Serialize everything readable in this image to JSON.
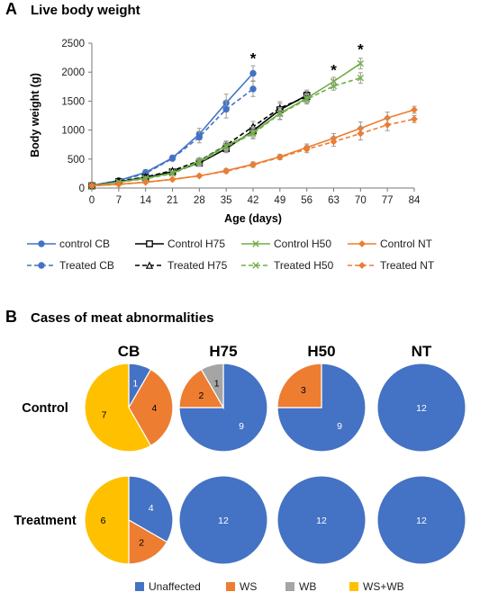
{
  "panel_a": {
    "letter": "A",
    "title": "Live body weight"
  },
  "panel_b": {
    "letter": "B",
    "title": "Cases of meat abnormalities"
  },
  "colors": {
    "CB": "#4472C4",
    "H75": "#000000",
    "H50": "#70AD47",
    "NT": "#ED7D31",
    "Unaffected": "#4472C4",
    "WS": "#ED7D31",
    "WB": "#A5A5A5",
    "WS+WB": "#FFC000"
  },
  "chart_data": [
    {
      "type": "line",
      "title": "Live body weight",
      "xlabel": "Age (days)",
      "ylabel": "Body weight (g)",
      "xlim": [
        0,
        84
      ],
      "ylim": [
        0,
        2500
      ],
      "x_ticks": [
        0,
        7,
        14,
        21,
        28,
        35,
        42,
        49,
        56,
        63,
        70,
        77,
        84
      ],
      "y_ticks": [
        0,
        500,
        1000,
        1500,
        2000,
        2500
      ],
      "grid": false,
      "legend_position": "bottom",
      "series": [
        {
          "name": "control CB",
          "group": "CB",
          "dashed": false,
          "marker": "circle",
          "x": [
            0,
            7,
            14,
            21,
            28,
            35,
            42
          ],
          "y": [
            45,
            130,
            270,
            520,
            930,
            1470,
            1980
          ],
          "err": [
            10,
            20,
            50,
            40,
            100,
            150,
            130
          ]
        },
        {
          "name": "Treated CB",
          "group": "CB",
          "dashed": true,
          "marker": "circle",
          "x": [
            0,
            7,
            14,
            21,
            28,
            35,
            42
          ],
          "y": [
            45,
            125,
            250,
            510,
            880,
            1360,
            1710
          ],
          "err": [
            10,
            20,
            50,
            40,
            100,
            150,
            130
          ]
        },
        {
          "name": "Control H75",
          "group": "H75",
          "dashed": false,
          "marker": "square",
          "x": [
            0,
            7,
            14,
            21,
            28,
            35,
            42,
            49,
            56
          ],
          "y": [
            40,
            110,
            180,
            280,
            430,
            680,
            990,
            1350,
            1600
          ],
          "err": [
            10,
            15,
            25,
            30,
            50,
            70,
            90,
            110,
            90
          ]
        },
        {
          "name": "Treated H75",
          "group": "H75",
          "dashed": true,
          "marker": "triangle",
          "x": [
            0,
            7,
            14,
            21,
            28,
            35,
            42,
            49,
            56
          ],
          "y": [
            40,
            115,
            190,
            300,
            470,
            740,
            1060,
            1380,
            1580
          ],
          "err": [
            10,
            15,
            25,
            30,
            50,
            70,
            90,
            110,
            90
          ]
        },
        {
          "name": "Control H50",
          "group": "H50",
          "dashed": false,
          "marker": "x",
          "x": [
            0,
            7,
            14,
            21,
            28,
            35,
            42,
            49,
            56,
            63,
            70
          ],
          "y": [
            40,
            105,
            170,
            260,
            460,
            730,
            960,
            1290,
            1550,
            1840,
            2150
          ],
          "err": [
            10,
            15,
            25,
            30,
            60,
            80,
            90,
            100,
            80,
            70,
            90
          ]
        },
        {
          "name": "Treated H50",
          "group": "H50",
          "dashed": true,
          "marker": "x",
          "x": [
            0,
            7,
            14,
            21,
            28,
            35,
            42,
            49,
            56,
            63,
            70
          ],
          "y": [
            40,
            100,
            160,
            250,
            440,
            710,
            940,
            1280,
            1530,
            1760,
            1900
          ],
          "err": [
            10,
            15,
            25,
            30,
            60,
            80,
            90,
            100,
            80,
            70,
            90
          ]
        },
        {
          "name": "Control NT",
          "group": "NT",
          "dashed": false,
          "marker": "diamond",
          "x": [
            0,
            7,
            14,
            21,
            28,
            35,
            42,
            49,
            56,
            63,
            70,
            77,
            84
          ],
          "y": [
            40,
            65,
            100,
            150,
            210,
            300,
            410,
            540,
            700,
            860,
            1030,
            1210,
            1350
          ],
          "err": [
            8,
            10,
            15,
            20,
            25,
            35,
            40,
            40,
            60,
            80,
            110,
            100,
            60
          ]
        },
        {
          "name": "Treated NT",
          "group": "NT",
          "dashed": true,
          "marker": "diamond",
          "x": [
            0,
            7,
            14,
            21,
            28,
            35,
            42,
            49,
            56,
            63,
            70,
            77,
            84
          ],
          "y": [
            40,
            65,
            100,
            150,
            210,
            290,
            400,
            530,
            670,
            800,
            940,
            1090,
            1190
          ],
          "err": [
            8,
            10,
            15,
            20,
            25,
            35,
            40,
            40,
            60,
            80,
            110,
            100,
            60
          ]
        }
      ],
      "annotations": [
        {
          "text": "*",
          "x": 42,
          "y": 2240
        },
        {
          "text": "*",
          "x": 63,
          "y": 2040
        },
        {
          "text": "*",
          "x": 70,
          "y": 2400
        }
      ]
    },
    {
      "type": "pie",
      "title": "Cases of meat abnormalities",
      "columns": [
        "CB",
        "H75",
        "H50",
        "NT"
      ],
      "rows": [
        "Control",
        "Treatment"
      ],
      "categories": [
        "Unaffected",
        "WS",
        "WB",
        "WS+WB"
      ],
      "pies": [
        {
          "row": "Control",
          "col": "CB",
          "values": [
            1,
            4,
            0,
            7
          ]
        },
        {
          "row": "Control",
          "col": "H75",
          "values": [
            9,
            2,
            1,
            0
          ]
        },
        {
          "row": "Control",
          "col": "H50",
          "values": [
            9,
            3,
            0,
            0
          ]
        },
        {
          "row": "Control",
          "col": "NT",
          "values": [
            12,
            0,
            0,
            0
          ]
        },
        {
          "row": "Treatment",
          "col": "CB",
          "values": [
            4,
            2,
            0,
            6
          ]
        },
        {
          "row": "Treatment",
          "col": "H75",
          "values": [
            12,
            0,
            0,
            0
          ]
        },
        {
          "row": "Treatment",
          "col": "H50",
          "values": [
            12,
            0,
            0,
            0
          ]
        },
        {
          "row": "Treatment",
          "col": "NT",
          "values": [
            12,
            0,
            0,
            0
          ]
        }
      ],
      "legend_position": "bottom"
    }
  ]
}
